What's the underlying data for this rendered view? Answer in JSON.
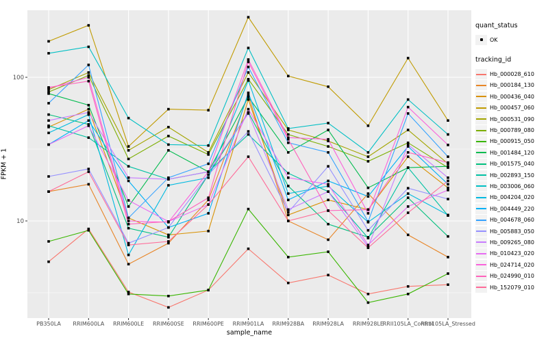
{
  "colors": {
    "panel_bg": "#EBEBEB",
    "grid": "#FFFFFF",
    "tick_text": "#4D4D4D",
    "point": "#000000",
    "legend_key_bg": "#F2F2F2",
    "background": "#FFFFFF"
  },
  "legend": {
    "quant_status_title": "quant_status",
    "quant_status_value": "OK",
    "tracking_id_title": "tracking_id"
  },
  "chart_data": {
    "type": "line",
    "title": "",
    "xlabel": "sample_name",
    "ylabel": "FPKM + 1",
    "y_scale": "log10",
    "y_ticks": [
      10,
      100
    ],
    "y_minor_ticks": [
      3.1623,
      31.623
    ],
    "ylim": [
      2.1,
      293
    ],
    "grid": true,
    "legend_position": "right",
    "point_shape": "filled-black-square",
    "quant_status": "OK",
    "categories": [
      "PB350LA",
      "RRIM600LA",
      "RRIM600LE",
      "RRIM600SE",
      "RRIM600PE",
      "RRIM901LA",
      "RRIM928BA",
      "RRIM928LA",
      "RRIM928LE",
      "RRII105LA_Control",
      "RRII105LA_Stressed"
    ],
    "series": [
      {
        "name": "Hb_000028_610",
        "color": "#F8766D",
        "values": [
          5.2,
          8.8,
          3.2,
          2.5,
          3.3,
          6.4,
          3.7,
          4.2,
          3.1,
          3.5,
          3.6
        ]
      },
      {
        "name": "Hb_000184_130",
        "color": "#E88526",
        "values": [
          16,
          18,
          5.0,
          7.0,
          14,
          75,
          10,
          7.4,
          15.5,
          8.0,
          5.6
        ]
      },
      {
        "name": "Hb_000436_040",
        "color": "#D89000",
        "values": [
          45,
          60,
          10.5,
          8.0,
          8.5,
          70,
          11,
          14,
          12,
          28,
          17
        ]
      },
      {
        "name": "Hb_000457_060",
        "color": "#C09B00",
        "values": [
          178,
          230,
          33,
          60,
          59,
          262,
          102,
          86,
          46,
          136,
          50
        ]
      },
      {
        "name": "Hb_000531_090",
        "color": "#A3A500",
        "values": [
          82,
          108,
          31,
          45,
          30,
          108,
          43,
          36,
          28,
          43,
          25
        ]
      },
      {
        "name": "Hb_000789_080",
        "color": "#7CAE00",
        "values": [
          79,
          103,
          27,
          39,
          29,
          97,
          40,
          33,
          26,
          35,
          23.5
        ]
      },
      {
        "name": "Hb_000915_050",
        "color": "#39B600",
        "values": [
          7.2,
          8.6,
          3.1,
          3.0,
          3.3,
          12.1,
          5.6,
          6.1,
          2.7,
          3.1,
          4.3
        ]
      },
      {
        "name": "Hb_001484_120",
        "color": "#00BB4E",
        "values": [
          77,
          64,
          12.6,
          31,
          22,
          73,
          30,
          43,
          17,
          23.5,
          24
        ]
      },
      {
        "name": "Hb_001575_040",
        "color": "#00BF7D",
        "values": [
          55,
          47,
          8.9,
          7.7,
          21,
          57,
          17.5,
          9.5,
          7.7,
          14.5,
          7.8
        ]
      },
      {
        "name": "Hb_002893_150",
        "color": "#00C1A3",
        "values": [
          46,
          38,
          24,
          19.5,
          22,
          40,
          21.5,
          16,
          7.6,
          23.5,
          10.9
        ]
      },
      {
        "name": "Hb_003006_060",
        "color": "#00BFC4",
        "values": [
          147,
          163,
          52,
          34,
          33.5,
          160,
          44,
          48,
          30,
          70,
          40
        ]
      },
      {
        "name": "Hb_004204_020",
        "color": "#00BAE0",
        "values": [
          41,
          55,
          5.8,
          17.7,
          20,
          95,
          15.5,
          17.5,
          9.8,
          15.5,
          11
        ]
      },
      {
        "name": "Hb_004449_220",
        "color": "#00B0F6",
        "values": [
          34,
          50,
          19,
          9.0,
          11.3,
          78,
          14,
          19,
          14.8,
          33,
          18
        ]
      },
      {
        "name": "Hb_004678_060",
        "color": "#35A2FF",
        "values": [
          66,
          122,
          10.5,
          20,
          25,
          118,
          35,
          30,
          9.9,
          56,
          28
        ]
      },
      {
        "name": "Hb_005883_050",
        "color": "#9590FF",
        "values": [
          20.4,
          23,
          7.0,
          9.0,
          21,
          42,
          11.5,
          24,
          8.6,
          16.9,
          14.2
        ]
      },
      {
        "name": "Hb_009265_080",
        "color": "#C77CFF",
        "values": [
          50,
          57,
          20,
          19.5,
          22,
          56,
          12,
          16,
          6.6,
          34,
          20
        ]
      },
      {
        "name": "Hb_010423_020",
        "color": "#E76BF3",
        "values": [
          34,
          46,
          13.9,
          9.9,
          13,
          60,
          20,
          18,
          6.8,
          12.6,
          16.4
        ]
      },
      {
        "name": "Hb_024714_020",
        "color": "#FA62DB",
        "values": [
          84,
          100,
          10,
          9.8,
          22,
          133,
          38,
          37,
          11.3,
          62,
          33.8
        ]
      },
      {
        "name": "Hb_024990_010",
        "color": "#FF62BC",
        "values": [
          85,
          94,
          9.5,
          9.9,
          14.5,
          128,
          37,
          11.8,
          12,
          30,
          25.5
        ]
      },
      {
        "name": "Hb_152079_010",
        "color": "#FF6A98",
        "values": [
          16,
          22,
          6.8,
          7.2,
          13,
          28,
          10,
          11.8,
          6.5,
          11.4,
          19
        ]
      }
    ]
  }
}
